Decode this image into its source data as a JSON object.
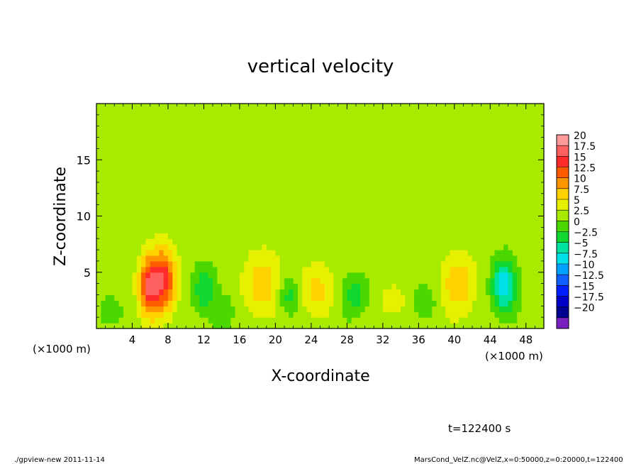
{
  "chart_data": {
    "type": "heatmap",
    "title": "vertical velocity",
    "xlabel": "X-coordinate",
    "ylabel": "Z-coordinate",
    "x_unit_label": "(×1000 m)",
    "x_unit_label_right": "(×1000 m)",
    "xlim": [
      0,
      50
    ],
    "ylim": [
      0,
      20
    ],
    "x_ticks": [
      "4",
      "8",
      "12",
      "16",
      "20",
      "24",
      "28",
      "32",
      "36",
      "40",
      "44",
      "48"
    ],
    "x_tick_values": [
      4,
      8,
      12,
      16,
      20,
      24,
      28,
      32,
      36,
      40,
      44,
      48
    ],
    "y_ticks": [
      "5",
      "10",
      "15"
    ],
    "y_tick_values": [
      5,
      10,
      15
    ],
    "colorbar": {
      "labels": [
        "20",
        "17.5",
        "15",
        "12.5",
        "10",
        "7.5",
        "5",
        "2.5",
        "0",
        "−2.5",
        "−5",
        "−7.5",
        "−10",
        "−12.5",
        "−15",
        "−17.5",
        "−20"
      ],
      "colors": [
        "#ff9a9a",
        "#ff6060",
        "#ff2a2a",
        "#ff5c00",
        "#ff9600",
        "#ffd200",
        "#e6f000",
        "#a8ea00",
        "#4ad800",
        "#10d830",
        "#00e2a0",
        "#00e0e8",
        "#00a0ff",
        "#1060ff",
        "#0020ff",
        "#0000c8",
        "#000090",
        "#7820c0"
      ]
    },
    "background_value": 1,
    "features": [
      {
        "x": 5.8,
        "z": 3.8,
        "value": 12,
        "sx": 0.8,
        "sz": 1.8
      },
      {
        "x": 7.5,
        "z": 4.3,
        "value": 13,
        "sx": 1.0,
        "sz": 2.0
      },
      {
        "x": 12,
        "z": 3.5,
        "value": -6,
        "sx": 0.9,
        "sz": 1.4
      },
      {
        "x": 18.5,
        "z": 4.0,
        "value": 6,
        "sx": 1.4,
        "sz": 2.0
      },
      {
        "x": 21.5,
        "z": 3.0,
        "value": -5,
        "sx": 0.8,
        "sz": 1.2
      },
      {
        "x": 24.5,
        "z": 3.5,
        "value": 5,
        "sx": 1.3,
        "sz": 1.6
      },
      {
        "x": 29,
        "z": 3.0,
        "value": -5,
        "sx": 1.0,
        "sz": 1.2
      },
      {
        "x": 33,
        "z": 2.5,
        "value": 3,
        "sx": 1.2,
        "sz": 1.2
      },
      {
        "x": 36.5,
        "z": 2.5,
        "value": -3,
        "sx": 1.0,
        "sz": 1.0
      },
      {
        "x": 40.5,
        "z": 4.0,
        "value": 6,
        "sx": 1.4,
        "sz": 1.8
      },
      {
        "x": 45.5,
        "z": 3.8,
        "value": -11,
        "sx": 0.9,
        "sz": 1.6
      },
      {
        "x": 1.5,
        "z": 1.5,
        "value": -3,
        "sx": 0.8,
        "sz": 1.0
      },
      {
        "x": 14.5,
        "z": 1.5,
        "value": -3,
        "sx": 0.8,
        "sz": 1.0
      }
    ],
    "time_label": "t=122400 s",
    "footer_left": "./gpview-new  2011-11-14",
    "footer_right": "MarsCond_VelZ.nc@VelZ,x=0:50000,z=0:20000,t=122400"
  }
}
